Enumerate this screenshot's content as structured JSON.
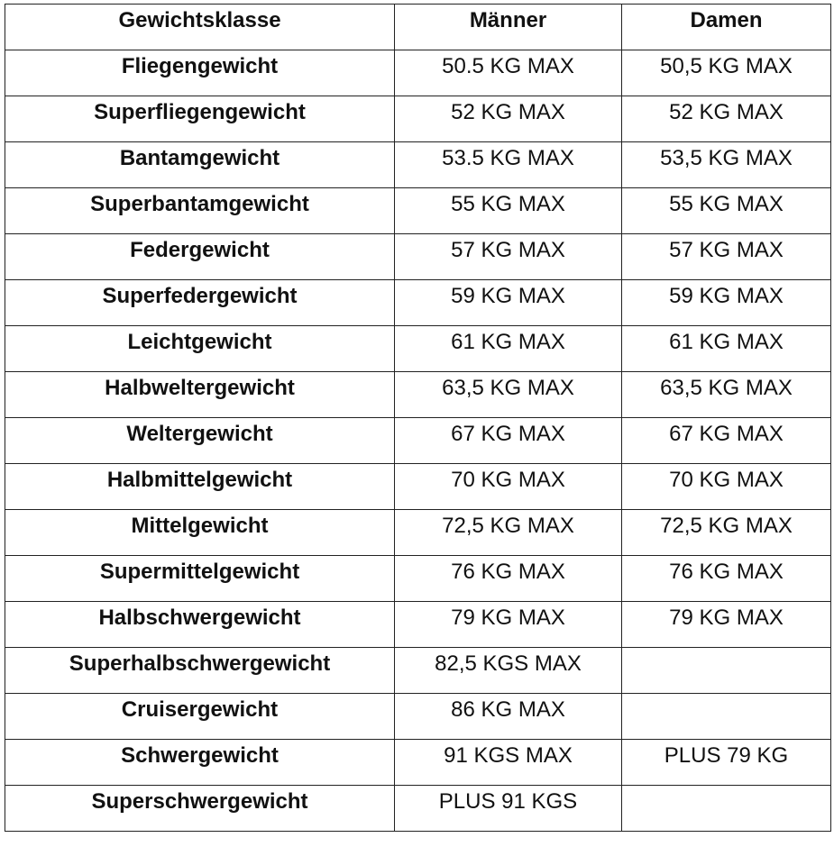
{
  "table": {
    "header": [
      "Gewichtsklasse",
      "Männer",
      "Damen"
    ],
    "rows": [
      [
        "Fliegengewicht",
        "50.5 KG MAX",
        "50,5 KG MAX"
      ],
      [
        "Superfliegengewicht",
        "52 KG MAX",
        "52 KG MAX"
      ],
      [
        "Bantamgewicht",
        "53.5 KG MAX",
        "53,5 KG MAX"
      ],
      [
        "Superbantamgewicht",
        "55 KG MAX",
        "55 KG MAX"
      ],
      [
        "Federgewicht",
        "57 KG MAX",
        "57 KG MAX"
      ],
      [
        "Superfedergewicht",
        "59 KG MAX",
        "59 KG MAX"
      ],
      [
        "Leichtgewicht",
        "61 KG MAX",
        "61 KG MAX"
      ],
      [
        "Halbweltergewicht",
        "63,5 KG MAX",
        "63,5 KG MAX"
      ],
      [
        "Weltergewicht",
        "67 KG MAX",
        "67 KG MAX"
      ],
      [
        "Halbmittelgewicht",
        "70 KG MAX",
        "70 KG MAX"
      ],
      [
        "Mittelgewicht",
        "72,5 KG MAX",
        "72,5 KG MAX"
      ],
      [
        "Supermittelgewicht",
        "76 KG MAX",
        "76 KG MAX"
      ],
      [
        "Halbschwergewicht",
        "79 KG MAX",
        "79 KG MAX"
      ],
      [
        "Superhalbschwergewicht",
        "82,5 KGS MAX"
      ],
      [
        "Cruisergewicht",
        "86 KG MAX"
      ],
      [
        "Schwergewicht",
        "91 KGS MAX",
        "PLUS 79 KG"
      ],
      [
        "Superschwergewicht",
        "PLUS 91 KGS"
      ]
    ]
  }
}
